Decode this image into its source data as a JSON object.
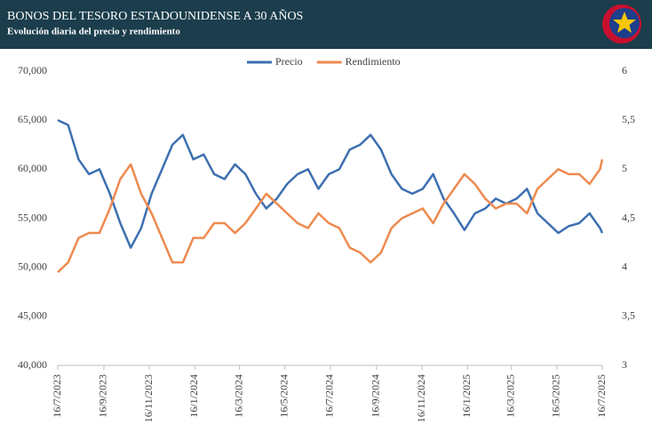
{
  "chart_data": {
    "type": "line",
    "title": "BONOS DEL TESORO ESTADOUNIDENSE A 30 AÑOS",
    "subtitle": "Evolución diaria del precio y rendimiento",
    "x": [
      "16/7/2023",
      "30/7/2023",
      "13/8/2023",
      "27/8/2023",
      "10/9/2023",
      "24/9/2023",
      "8/10/2023",
      "22/10/2023",
      "5/11/2023",
      "19/11/2023",
      "3/12/2023",
      "17/12/2023",
      "31/12/2023",
      "14/1/2024",
      "28/1/2024",
      "11/2/2024",
      "25/2/2024",
      "10/3/2024",
      "24/3/2024",
      "7/4/2024",
      "21/4/2024",
      "5/5/2024",
      "19/5/2024",
      "2/6/2024",
      "16/6/2024",
      "30/6/2024",
      "14/7/2024",
      "28/7/2024",
      "11/8/2024",
      "25/8/2024",
      "8/9/2024",
      "22/9/2024",
      "6/10/2024",
      "20/10/2024",
      "3/11/2024",
      "17/11/2024",
      "1/12/2024",
      "15/12/2024",
      "29/12/2024",
      "12/1/2025",
      "26/1/2025",
      "9/2/2025",
      "23/2/2025",
      "9/3/2025",
      "23/3/2025",
      "6/4/2025",
      "20/4/2025",
      "4/5/2025",
      "18/5/2025",
      "1/6/2025",
      "15/6/2025",
      "29/6/2025",
      "13/7/2025",
      "16/7/2025"
    ],
    "series": [
      {
        "name": "Precio",
        "color": "#3d6fb0",
        "axis": "y",
        "values": [
          65000,
          64500,
          61000,
          59500,
          60000,
          57500,
          54500,
          52000,
          54000,
          57500,
          60000,
          62500,
          63500,
          61000,
          61500,
          59500,
          59000,
          60500,
          59500,
          57500,
          56000,
          57000,
          58500,
          59500,
          60000,
          58000,
          59500,
          60000,
          62000,
          62500,
          63500,
          62000,
          59500,
          58000,
          57500,
          58000,
          59500,
          57000,
          55500,
          53800,
          55500,
          56000,
          57000,
          56500,
          57000,
          58000,
          55500,
          54500,
          53500,
          54200,
          54500,
          55500,
          54000,
          53500
        ]
      },
      {
        "name": "Rendimiento",
        "color": "#ee8a4f",
        "axis": "y2",
        "values": [
          3.95,
          4.05,
          4.3,
          4.35,
          4.35,
          4.6,
          4.9,
          5.05,
          4.75,
          4.55,
          4.3,
          4.05,
          4.05,
          4.3,
          4.3,
          4.45,
          4.45,
          4.35,
          4.45,
          4.6,
          4.75,
          4.65,
          4.55,
          4.45,
          4.4,
          4.55,
          4.45,
          4.4,
          4.2,
          4.15,
          4.05,
          4.15,
          4.4,
          4.5,
          4.55,
          4.6,
          4.45,
          4.65,
          4.8,
          4.95,
          4.85,
          4.7,
          4.6,
          4.65,
          4.65,
          4.55,
          4.8,
          4.9,
          5.0,
          4.95,
          4.95,
          4.85,
          5.0,
          5.1
        ]
      }
    ],
    "xlim": [
      "16/7/2023",
      "16/7/2025"
    ],
    "xticks": [
      "16/7/2023",
      "16/9/2023",
      "16/11/2023",
      "16/1/2024",
      "16/3/2024",
      "16/5/2024",
      "16/7/2024",
      "16/9/2024",
      "16/11/2024",
      "16/1/2025",
      "16/3/2025",
      "16/5/2025",
      "16/7/2025"
    ],
    "ylim": [
      40000,
      70000
    ],
    "yticks": [
      {
        "value": 40000,
        "label": "40,000"
      },
      {
        "value": 45000,
        "label": "45,000"
      },
      {
        "value": 50000,
        "label": "50,000"
      },
      {
        "value": 55000,
        "label": "55,000"
      },
      {
        "value": 60000,
        "label": "60,000"
      },
      {
        "value": 65000,
        "label": "65,000"
      },
      {
        "value": 70000,
        "label": "70,000"
      }
    ],
    "y2lim": [
      3,
      6
    ],
    "y2ticks": [
      3,
      {
        "value": 3.5,
        "label": "3,5"
      },
      4,
      {
        "value": 4.5,
        "label": "4,5"
      },
      5,
      {
        "value": 5.5,
        "label": "5,5"
      },
      6
    ],
    "legend": "top"
  }
}
